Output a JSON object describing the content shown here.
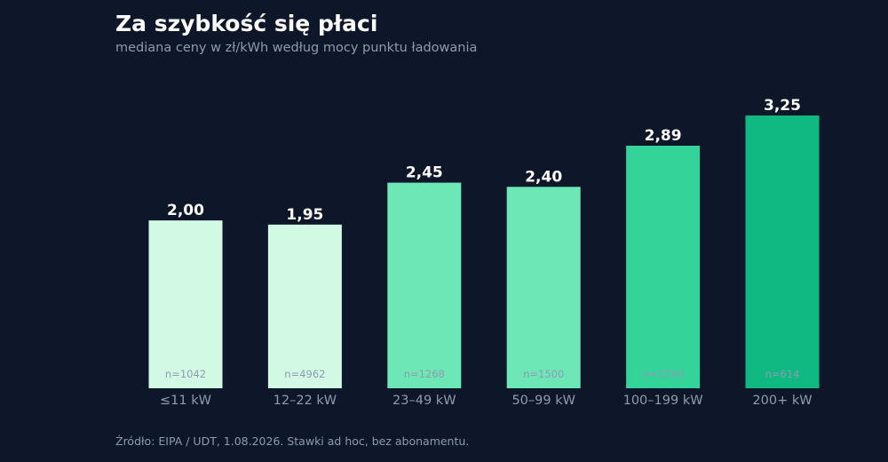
{
  "header": {
    "title": "Za szybkość się płaci",
    "subtitle": "mediana ceny w zł/kWh według mocy punktu ładowania"
  },
  "footer": {
    "source": "Źródło: EIPA / UDT, 1.08.2026. Stawki ad hoc, bez abonamentu."
  },
  "chart_data": {
    "type": "bar",
    "title": "Za szybkość się płaci",
    "subtitle": "mediana ceny w zł/kWh według mocy punktu ładowania",
    "xlabel": "",
    "ylabel": "",
    "ylim": [
      0,
      3.25
    ],
    "grid": false,
    "categories": [
      "≤11 kW",
      "12–22 kW",
      "23–49 kW",
      "50–99 kW",
      "100–199 kW",
      "200+ kW"
    ],
    "values": [
      2.0,
      1.95,
      2.45,
      2.4,
      2.89,
      3.25
    ],
    "value_labels": [
      "2,00",
      "1,95",
      "2,45",
      "2,40",
      "2,89",
      "3,25"
    ],
    "sample_sizes": [
      "n=1042",
      "n=4962",
      "n=1268",
      "n=1500",
      "n=1790",
      "n=614"
    ],
    "bar_colors": [
      "#d1f9e4",
      "#d1f9e4",
      "#6ee7b7",
      "#6ee7b7",
      "#34d399",
      "#10b981"
    ]
  }
}
